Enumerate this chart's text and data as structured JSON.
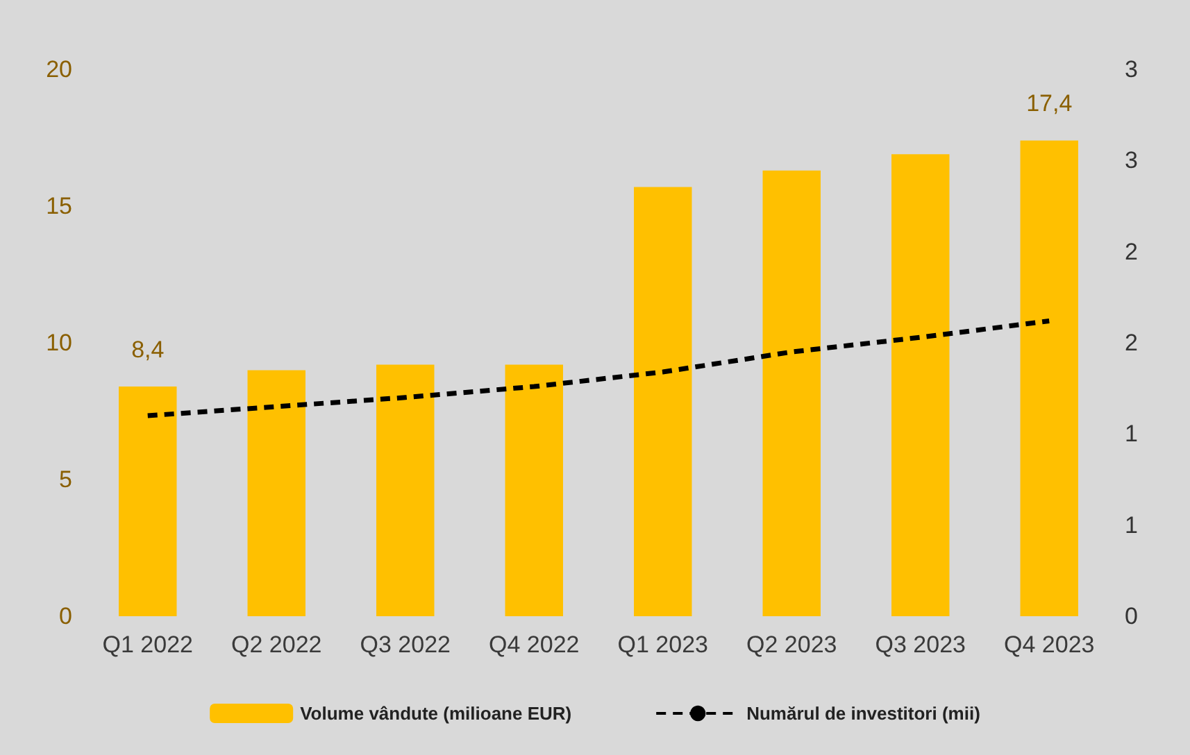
{
  "chart_data": {
    "type": "bar",
    "categories": [
      "Q1 2022",
      "Q2 2022",
      "Q3 2022",
      "Q4 2022",
      "Q1 2023",
      "Q2 2023",
      "Q3 2023",
      "Q4 2023"
    ],
    "series": [
      {
        "name": "Volume vândute (milioane EUR)",
        "color": "#ffc000",
        "values": [
          8.4,
          9.0,
          9.2,
          9.2,
          15.7,
          16.3,
          16.9,
          17.4
        ],
        "value_labels": [
          "8,4",
          null,
          null,
          null,
          null,
          null,
          null,
          "17,4"
        ]
      },
      {
        "name": "Numărul de investitori (mii)",
        "type": "line",
        "axis": "y2",
        "color": "#000000",
        "line_style": "dashed",
        "marker": "none",
        "values": [
          1.1,
          1.15,
          1.2,
          1.26,
          1.34,
          1.45,
          1.53,
          1.62
        ]
      }
    ],
    "ylim": [
      0,
      20
    ],
    "yticks": [
      0,
      5,
      10,
      15,
      20
    ],
    "y2lim": [
      0,
      3
    ],
    "y2ticks": [
      0,
      {
        "value": 0.5,
        "label": "1"
      },
      1,
      {
        "value": 1.5,
        "label": "2"
      },
      2,
      {
        "value": 2.5,
        "label": "3"
      },
      3
    ],
    "grid": false,
    "legend": "bottom"
  }
}
